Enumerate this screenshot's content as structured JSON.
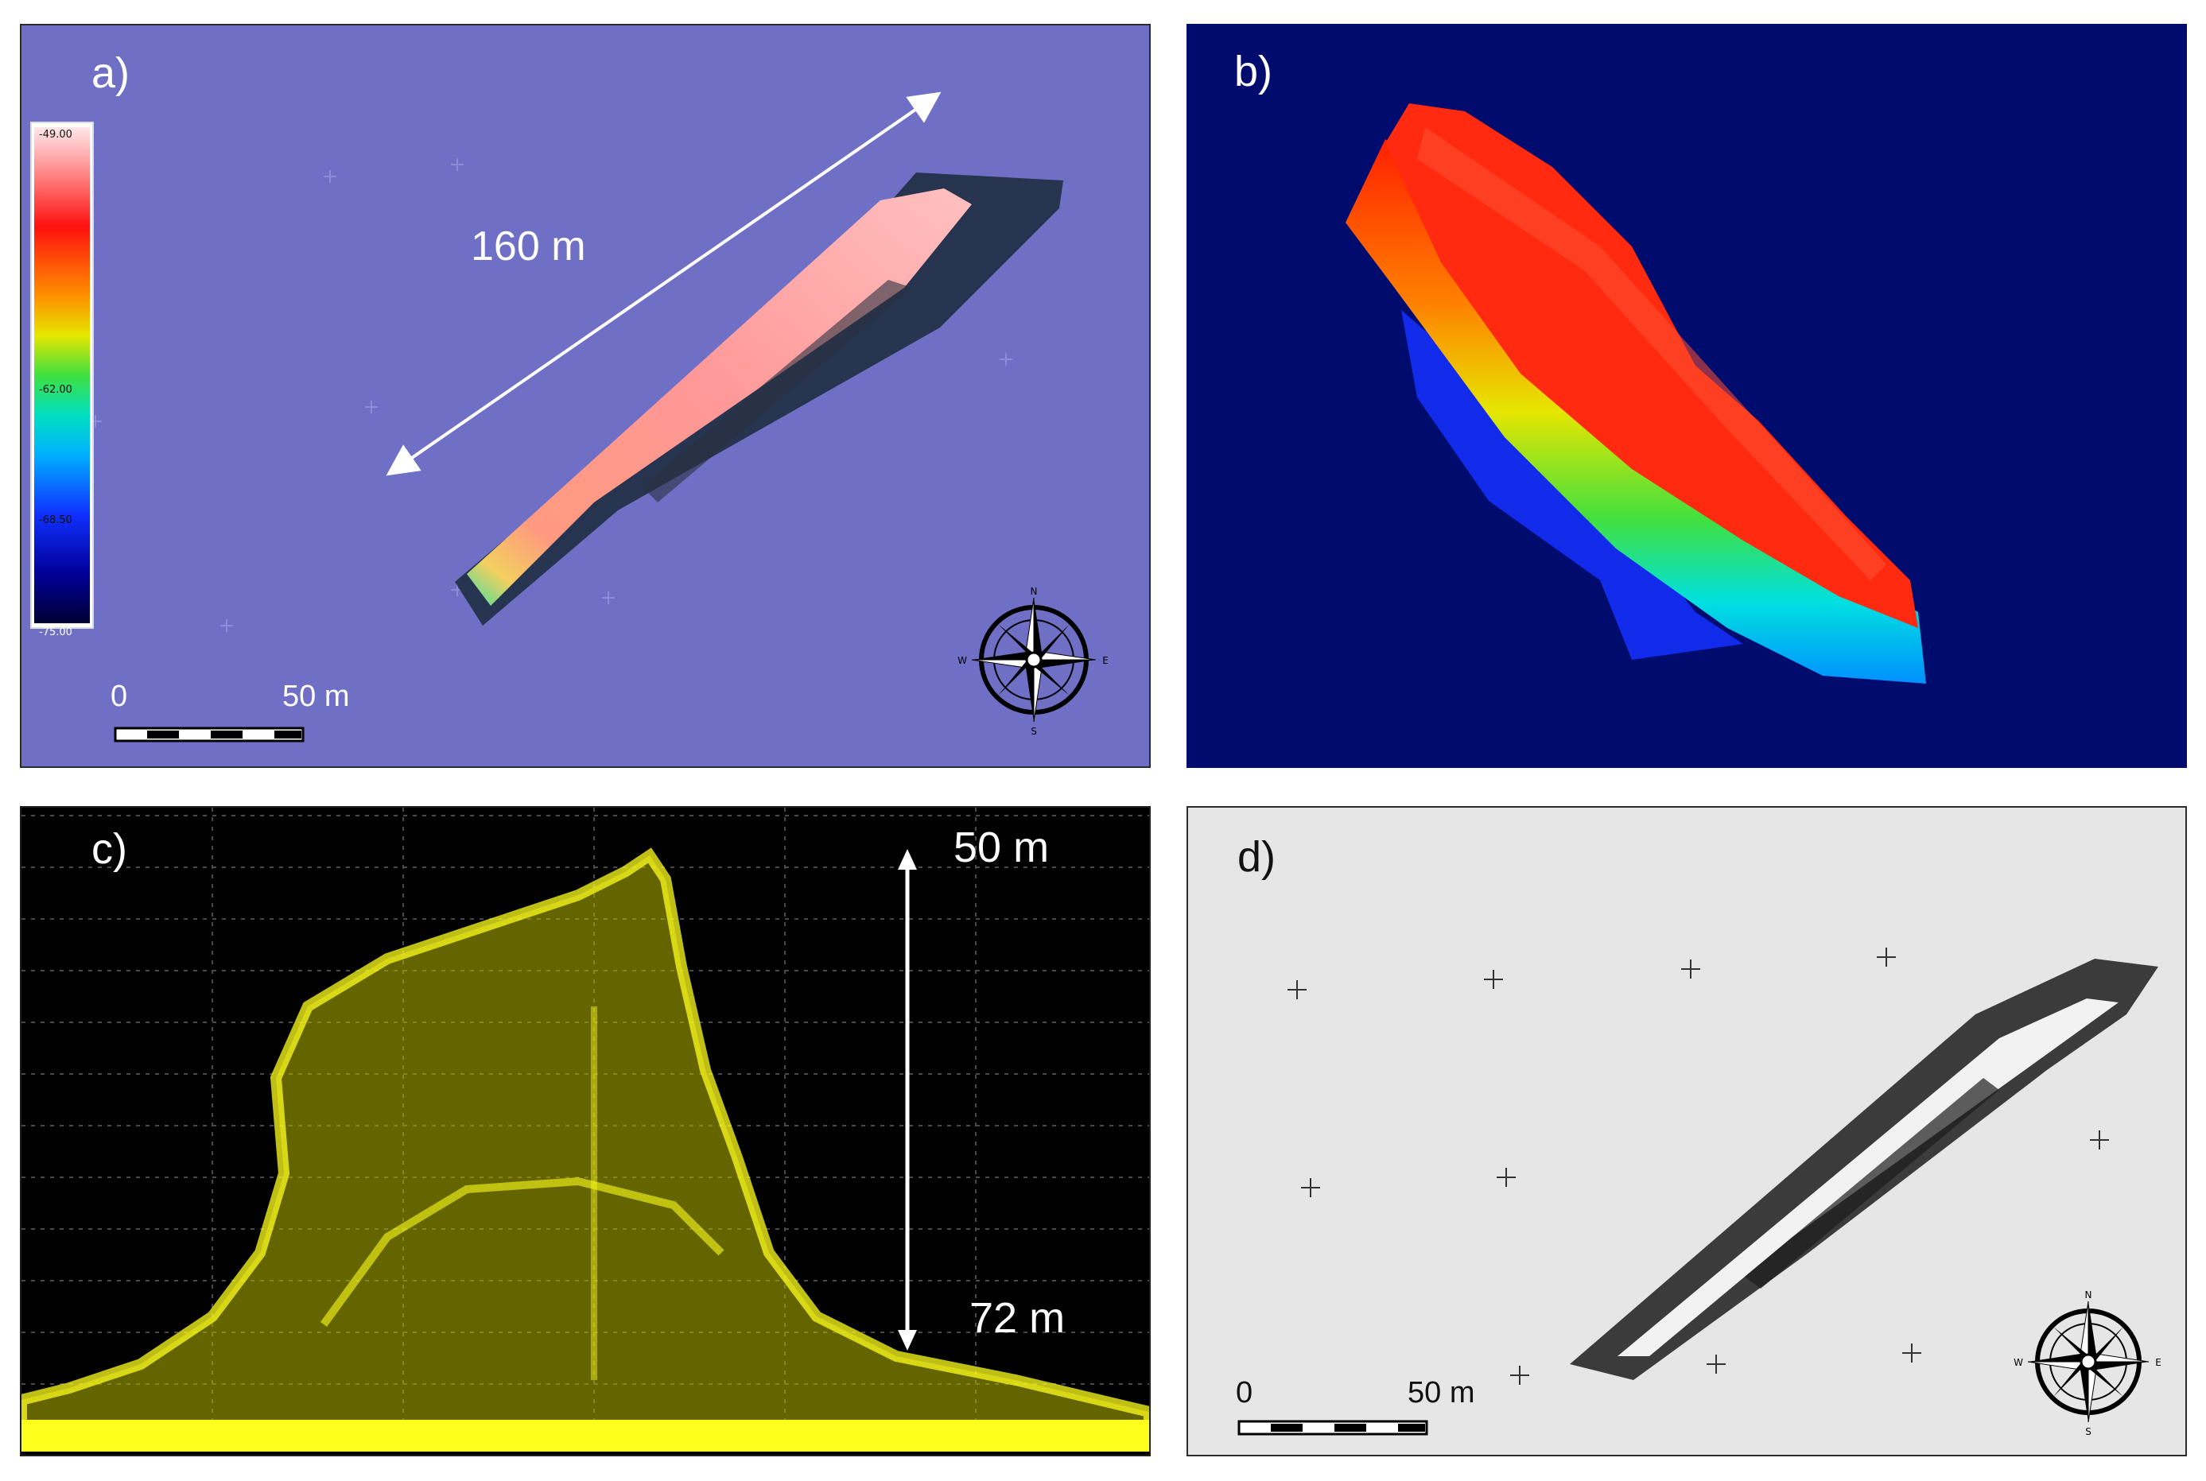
{
  "panels": [
    {
      "label": "a)",
      "length_annotation": "160 m",
      "scale_bar": {
        "start": "0",
        "end": "50 m"
      },
      "colorbar": {
        "ticks": [
          "-49.00",
          "-62.00",
          "-68.50",
          "-75.00"
        ]
      },
      "compass": {
        "n": "N",
        "s": "S",
        "e": "E",
        "w": "W"
      }
    },
    {
      "label": "b)"
    },
    {
      "label": "c)",
      "depth_top": "50 m",
      "depth_bottom": "72 m"
    },
    {
      "label": "d)",
      "scale_bar": {
        "start": "0",
        "end": "50 m"
      },
      "compass": {
        "n": "N",
        "s": "S",
        "e": "E",
        "w": "W"
      }
    }
  ],
  "colors": {
    "seafloor_a": "#6f6fc6",
    "background_b": "#000b6e",
    "points_c": "#ffff1e",
    "background_c": "#000000",
    "background_d": "#e6e6e6"
  }
}
